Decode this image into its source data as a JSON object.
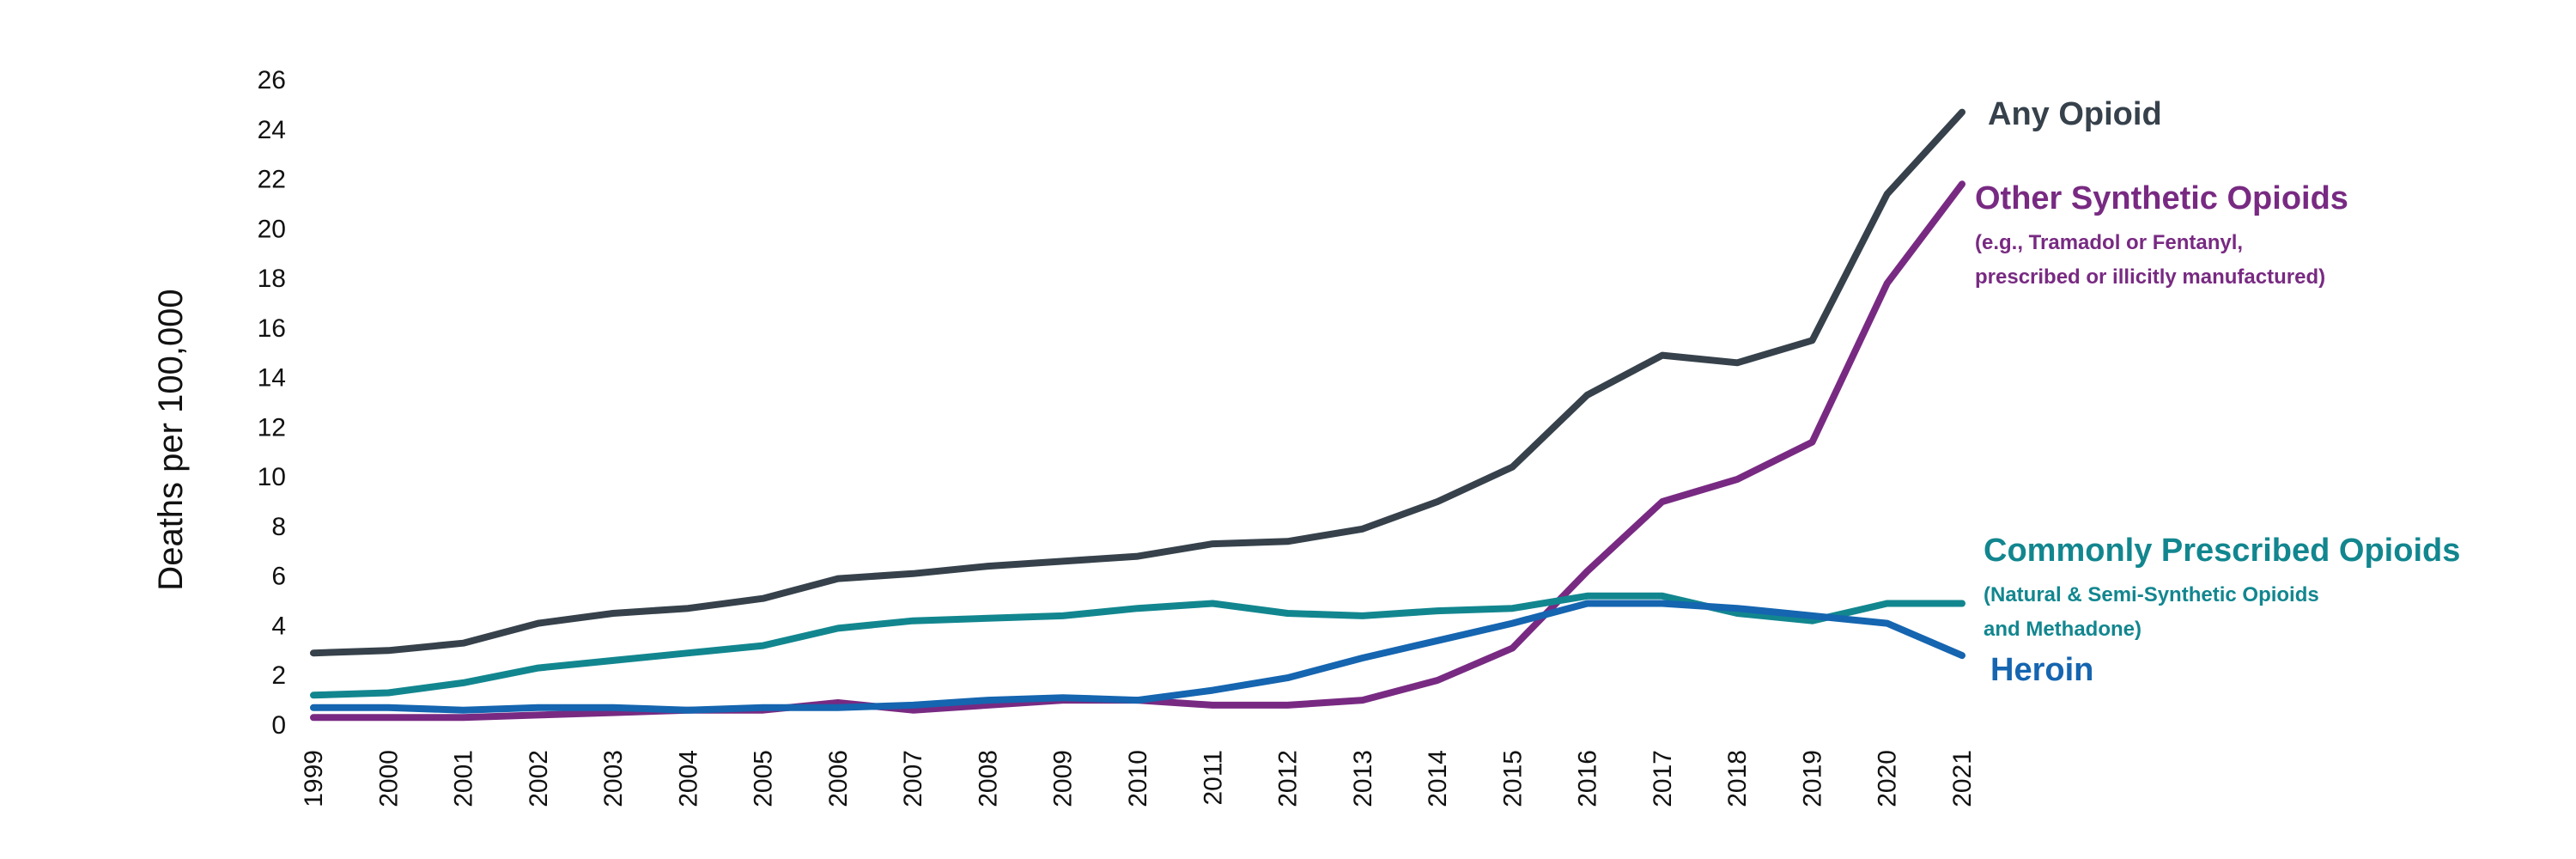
{
  "chart_data": {
    "type": "line",
    "ylabel": "Deaths per 100,000",
    "xlabel": "",
    "title": "",
    "ylim": [
      0,
      26
    ],
    "y_ticks": [
      0,
      2,
      4,
      6,
      8,
      10,
      12,
      14,
      16,
      18,
      20,
      22,
      24,
      26
    ],
    "x": [
      "1999",
      "2000",
      "2001",
      "2002",
      "2003",
      "2004",
      "2005",
      "2006",
      "2007",
      "2008",
      "2009",
      "2010",
      "2011",
      "2012",
      "2013",
      "2014",
      "2015",
      "2016",
      "2017",
      "2018",
      "2019",
      "2020",
      "2021"
    ],
    "grid": false,
    "legend": "direct labels at right end of lines",
    "series": [
      {
        "name": "Any Opioid",
        "color": "#36414b",
        "values": [
          2.9,
          3.0,
          3.3,
          4.1,
          4.5,
          4.7,
          5.1,
          5.9,
          6.1,
          6.4,
          6.6,
          6.8,
          7.3,
          7.4,
          7.9,
          9.0,
          10.4,
          13.3,
          14.9,
          14.6,
          15.5,
          21.4,
          24.7
        ]
      },
      {
        "name": "Other Synthetic Opioids",
        "note_lines": [
          "(e.g., Tramadol or Fentanyl,",
          "prescribed or illicitly manufactured)"
        ],
        "color": "#782a82",
        "values": [
          0.3,
          0.3,
          0.3,
          0.4,
          0.5,
          0.6,
          0.6,
          0.9,
          0.6,
          0.8,
          1.0,
          1.0,
          0.8,
          0.8,
          1.0,
          1.8,
          3.1,
          6.2,
          9.0,
          9.9,
          11.4,
          17.8,
          21.8
        ]
      },
      {
        "name": "Commonly Prescribed Opioids",
        "note_lines": [
          "(Natural & Semi-Synthetic Opioids",
          "and Methadone)"
        ],
        "color": "#12868f",
        "values": [
          1.2,
          1.3,
          1.7,
          2.3,
          2.6,
          2.9,
          3.2,
          3.9,
          4.2,
          4.3,
          4.4,
          4.7,
          4.9,
          4.5,
          4.4,
          4.6,
          4.7,
          5.2,
          5.2,
          4.5,
          4.2,
          4.9,
          4.9
        ]
      },
      {
        "name": "Heroin",
        "color": "#1565b0",
        "values": [
          0.7,
          0.7,
          0.6,
          0.7,
          0.7,
          0.6,
          0.7,
          0.7,
          0.8,
          1.0,
          1.1,
          1.0,
          1.4,
          1.9,
          2.7,
          3.4,
          4.1,
          4.9,
          4.9,
          4.7,
          4.4,
          4.1,
          2.8
        ]
      }
    ]
  }
}
